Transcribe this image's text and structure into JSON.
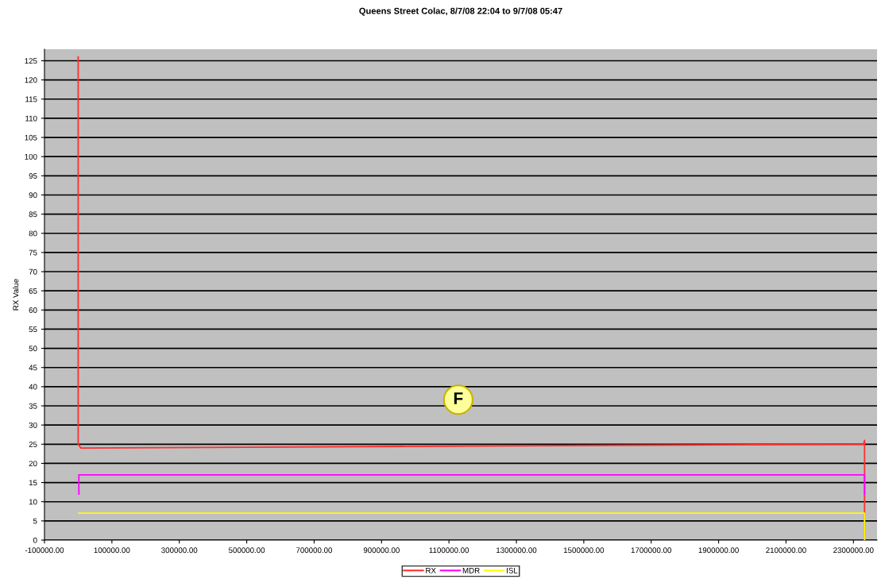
{
  "chart_data": {
    "type": "line",
    "title": "Queens Street Colac, 8/7/08 22:04 to 9/7/08 05:47",
    "ylabel": "RX Value",
    "series": [
      {
        "name": "RX",
        "color": "#ff3030",
        "x": [
          0,
          0,
          0,
          8000,
          500000,
          1300000,
          2330000,
          2333000,
          2333000
        ],
        "values": [
          126,
          35,
          25,
          24,
          24.2,
          24.6,
          25,
          26,
          0
        ]
      },
      {
        "name": "MDR",
        "color": "#ff00ff",
        "x": [
          2000,
          2000,
          2333000,
          2333000
        ],
        "values": [
          12,
          17,
          17,
          12
        ]
      },
      {
        "name": "ISL",
        "color": "#ffff00",
        "x": [
          2000,
          2333000,
          2333000
        ],
        "values": [
          7,
          7,
          0
        ]
      }
    ],
    "xlim": [
      -100000,
      2370000
    ],
    "xticks": [
      {
        "value": -100000,
        "label": "-100000.00"
      },
      {
        "value": 100000,
        "label": "100000.00"
      },
      {
        "value": 300000,
        "label": "300000.00"
      },
      {
        "value": 500000,
        "label": "500000.00"
      },
      {
        "value": 700000,
        "label": "700000.00"
      },
      {
        "value": 900000,
        "label": "900000.00"
      },
      {
        "value": 1100000,
        "label": "1100000.00"
      },
      {
        "value": 1300000,
        "label": "1300000.00"
      },
      {
        "value": 1500000,
        "label": "1500000.00"
      },
      {
        "value": 1700000,
        "label": "1700000.00"
      },
      {
        "value": 1900000,
        "label": "1900000.00"
      },
      {
        "value": 2100000,
        "label": "2100000.00"
      },
      {
        "value": 2300000,
        "label": "2300000.00"
      }
    ],
    "ylim": [
      0,
      128
    ],
    "yticks": [
      0,
      5,
      10,
      15,
      20,
      25,
      30,
      35,
      40,
      45,
      50,
      55,
      60,
      65,
      70,
      75,
      80,
      85,
      90,
      95,
      100,
      105,
      110,
      115,
      120,
      125
    ],
    "grid": "y",
    "legend": "bottom",
    "marker": "none",
    "line_style": "solid",
    "annotations": [
      "F"
    ]
  }
}
